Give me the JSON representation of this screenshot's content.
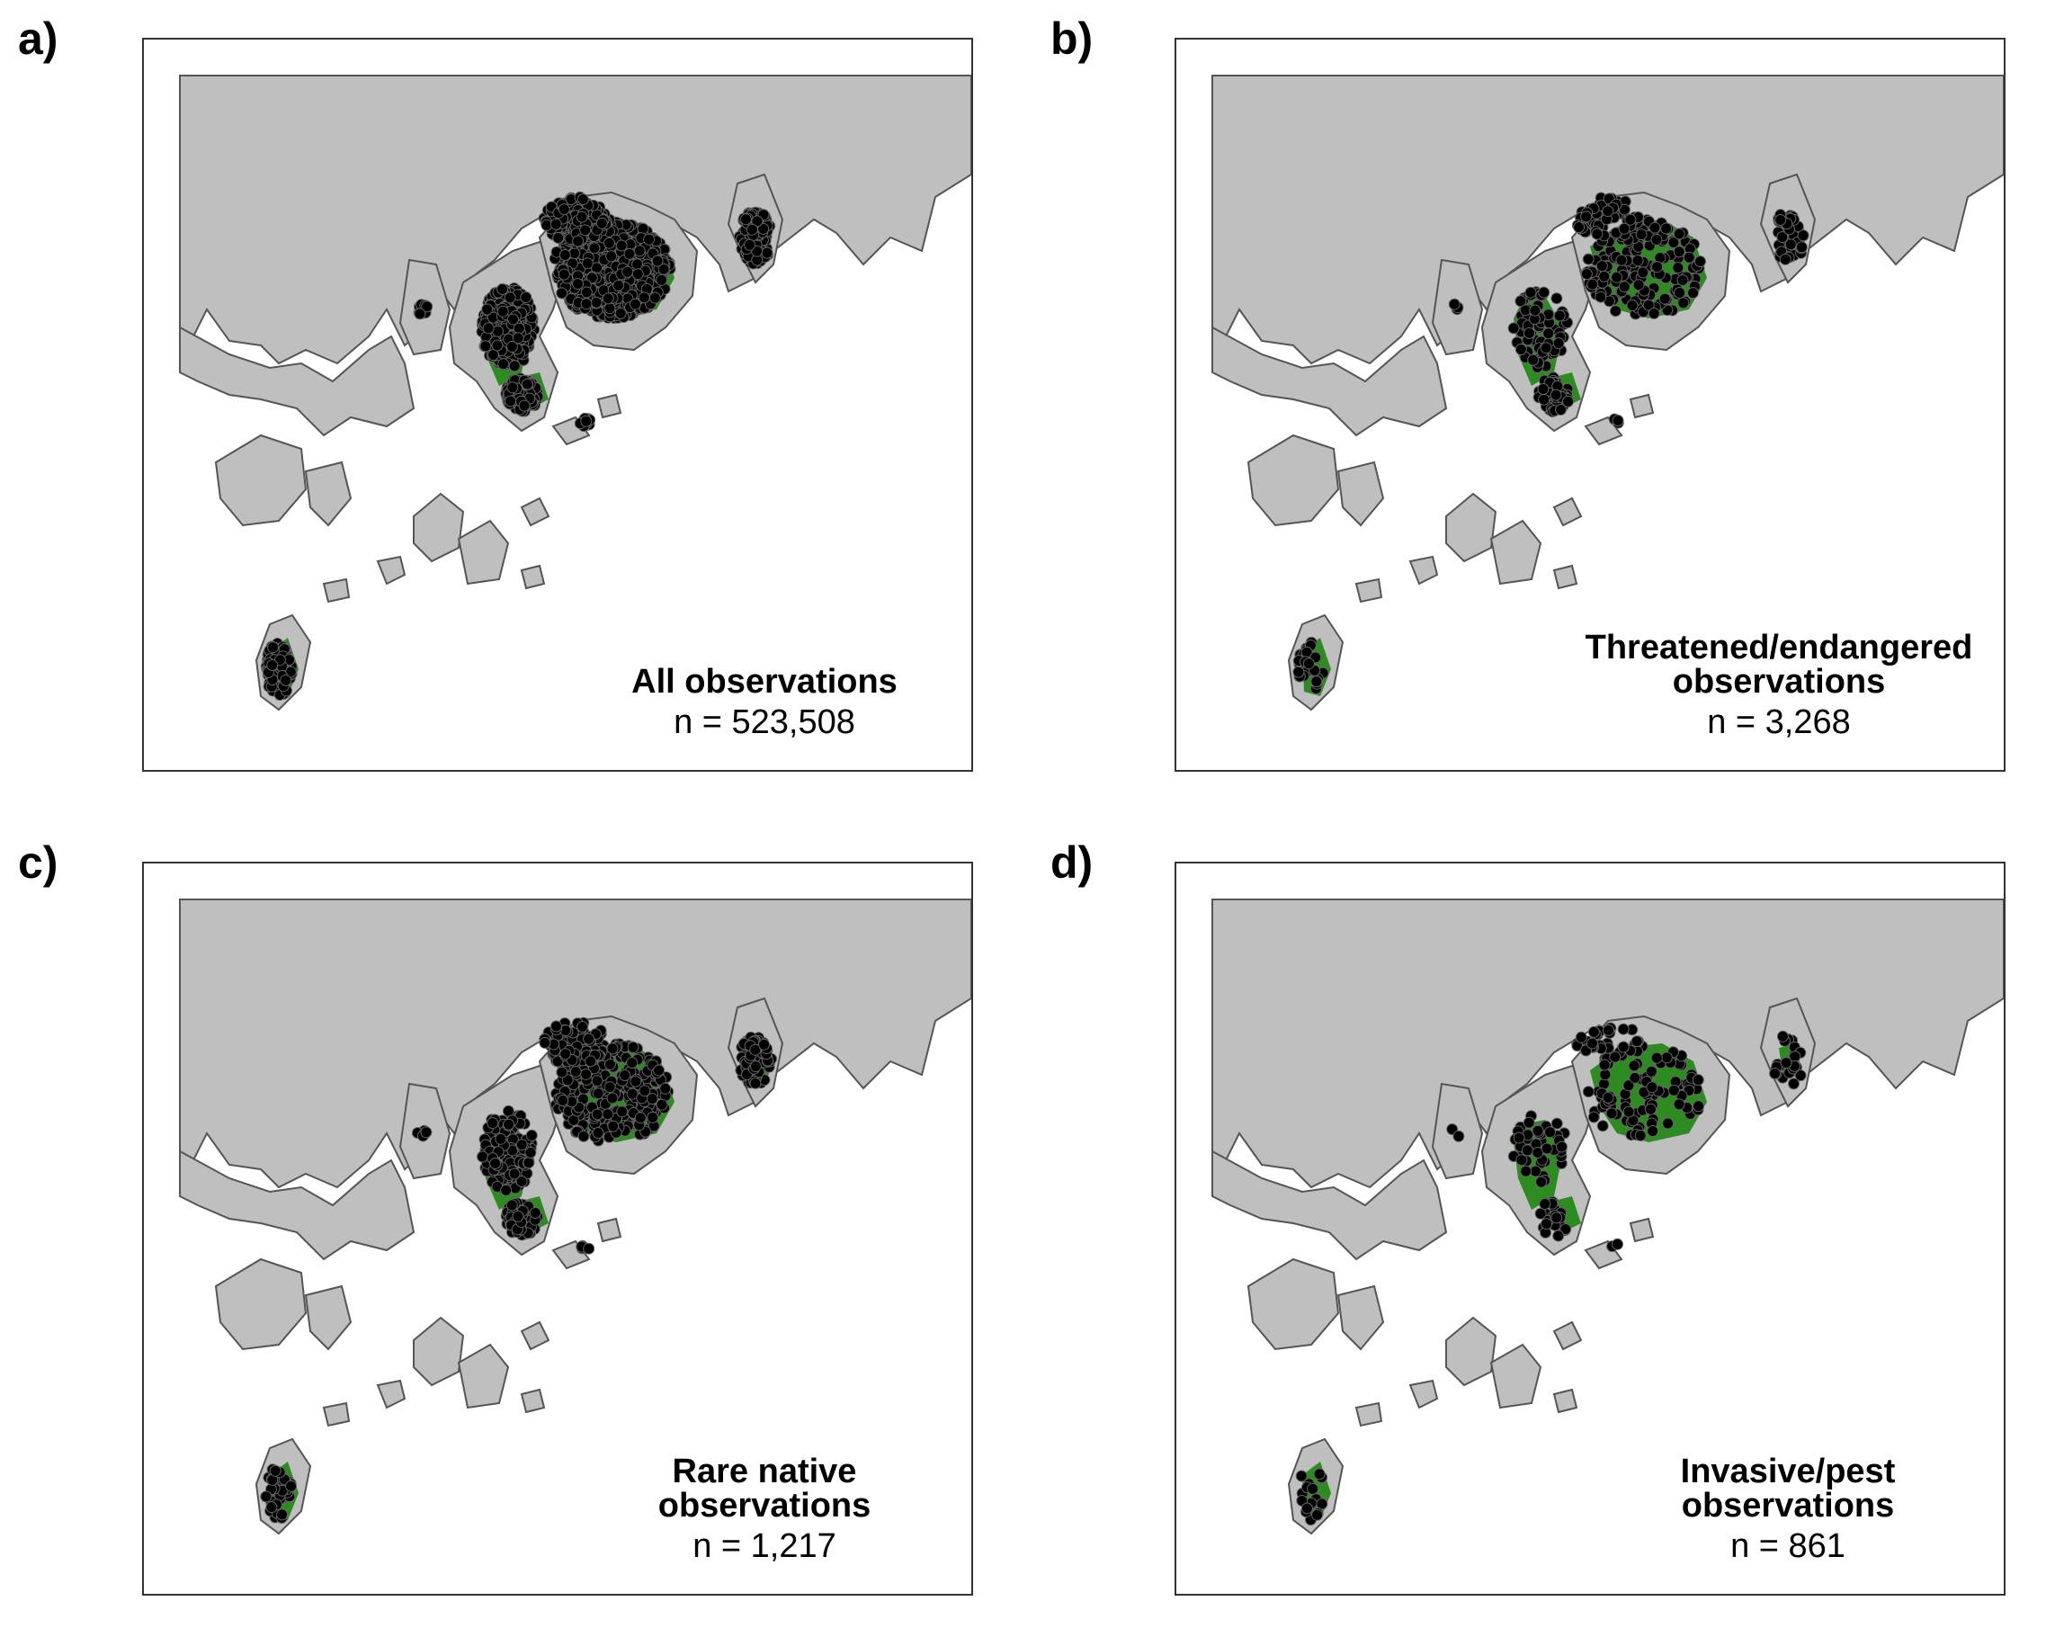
{
  "colors": {
    "land": "#bfbfbf",
    "coast": "#555555",
    "protected": "#2e8b22",
    "point": "#000000",
    "frame": "#333333"
  },
  "panels": [
    {
      "letter": "a)",
      "title_lines": [
        "All observations"
      ],
      "n_label": "n = 523,508",
      "density": "very-high"
    },
    {
      "letter": "b)",
      "title_lines": [
        "Threatened/endangered",
        "observations"
      ],
      "n_label": "n = 3,268",
      "density": "medium"
    },
    {
      "letter": "c)",
      "title_lines": [
        "Rare native",
        "observations"
      ],
      "n_label": "n = 1,217",
      "density": "high"
    },
    {
      "letter": "d)",
      "title_lines": [
        "Invasive/pest",
        "observations"
      ],
      "n_label": "n = 861",
      "density": "low"
    }
  ]
}
